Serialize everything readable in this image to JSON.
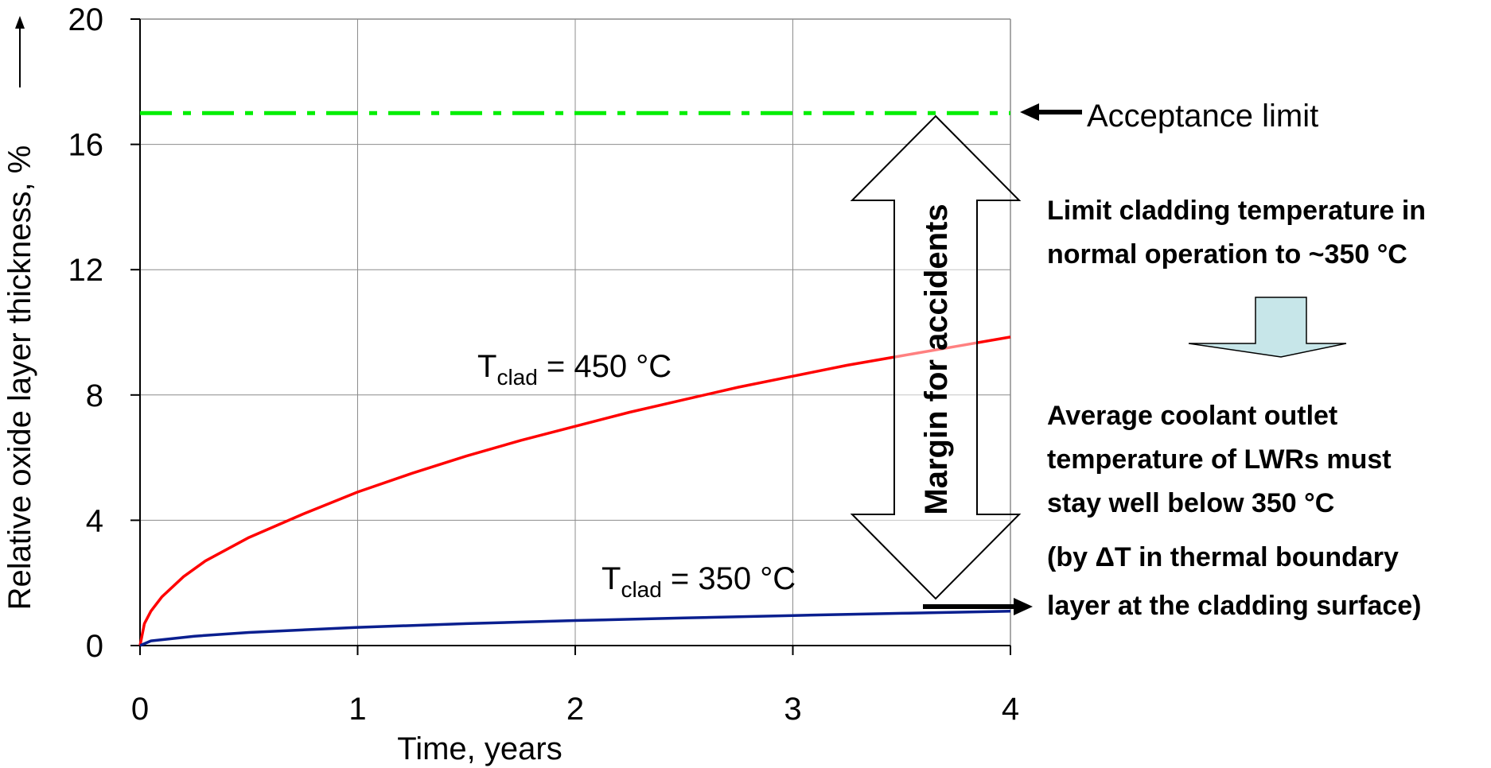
{
  "chart_data": {
    "type": "line",
    "xlabel": "Time, years",
    "ylabel": "Relative oxide layer thickness, %",
    "xlim": [
      0,
      4
    ],
    "ylim": [
      0,
      20
    ],
    "x_ticks": [
      0,
      1,
      2,
      3,
      4
    ],
    "y_ticks": [
      0,
      4,
      8,
      12,
      16,
      20
    ],
    "grid": true,
    "series": [
      {
        "name": "T_clad = 450 °C",
        "color": "#ff0000",
        "x": [
          0,
          0.02,
          0.05,
          0.1,
          0.2,
          0.3,
          0.5,
          0.75,
          1.0,
          1.25,
          1.5,
          1.75,
          2.0,
          2.25,
          2.5,
          2.75,
          3.0,
          3.25,
          3.5,
          3.75,
          4.0
        ],
        "y": [
          0,
          0.7,
          1.1,
          1.55,
          2.2,
          2.7,
          3.45,
          4.2,
          4.9,
          5.5,
          6.05,
          6.55,
          7.0,
          7.45,
          7.85,
          8.25,
          8.6,
          8.95,
          9.25,
          9.55,
          9.85
        ]
      },
      {
        "name": "T_clad = 350 °C",
        "color": "#0a1f8f",
        "x": [
          0,
          0.05,
          0.25,
          0.5,
          1.0,
          1.5,
          2.0,
          2.5,
          3.0,
          3.5,
          4.0
        ],
        "y": [
          0,
          0.15,
          0.3,
          0.42,
          0.58,
          0.7,
          0.8,
          0.88,
          0.96,
          1.03,
          1.1
        ]
      }
    ],
    "reference_lines": [
      {
        "label": "Acceptance limit",
        "y": 17,
        "color": "#00ee00",
        "style": "dash-dot"
      }
    ]
  },
  "annotations": {
    "t450": {
      "T": "T",
      "sub": "clad",
      "rest": " = 450 °C"
    },
    "t350": {
      "T": "T",
      "sub": "clad",
      "rest": " = 350 °C"
    },
    "acceptance_label": "Acceptance limit",
    "margin_label": "Margin for accidents",
    "note1_lines": [
      "Limit cladding temperature in",
      "normal operation to ~350 °C"
    ],
    "note2_lines": [
      "Average coolant outlet",
      "temperature of LWRs must",
      "stay well below 350 °C",
      "(by ΔT in thermal boundary",
      "layer at the cladding surface)"
    ]
  }
}
